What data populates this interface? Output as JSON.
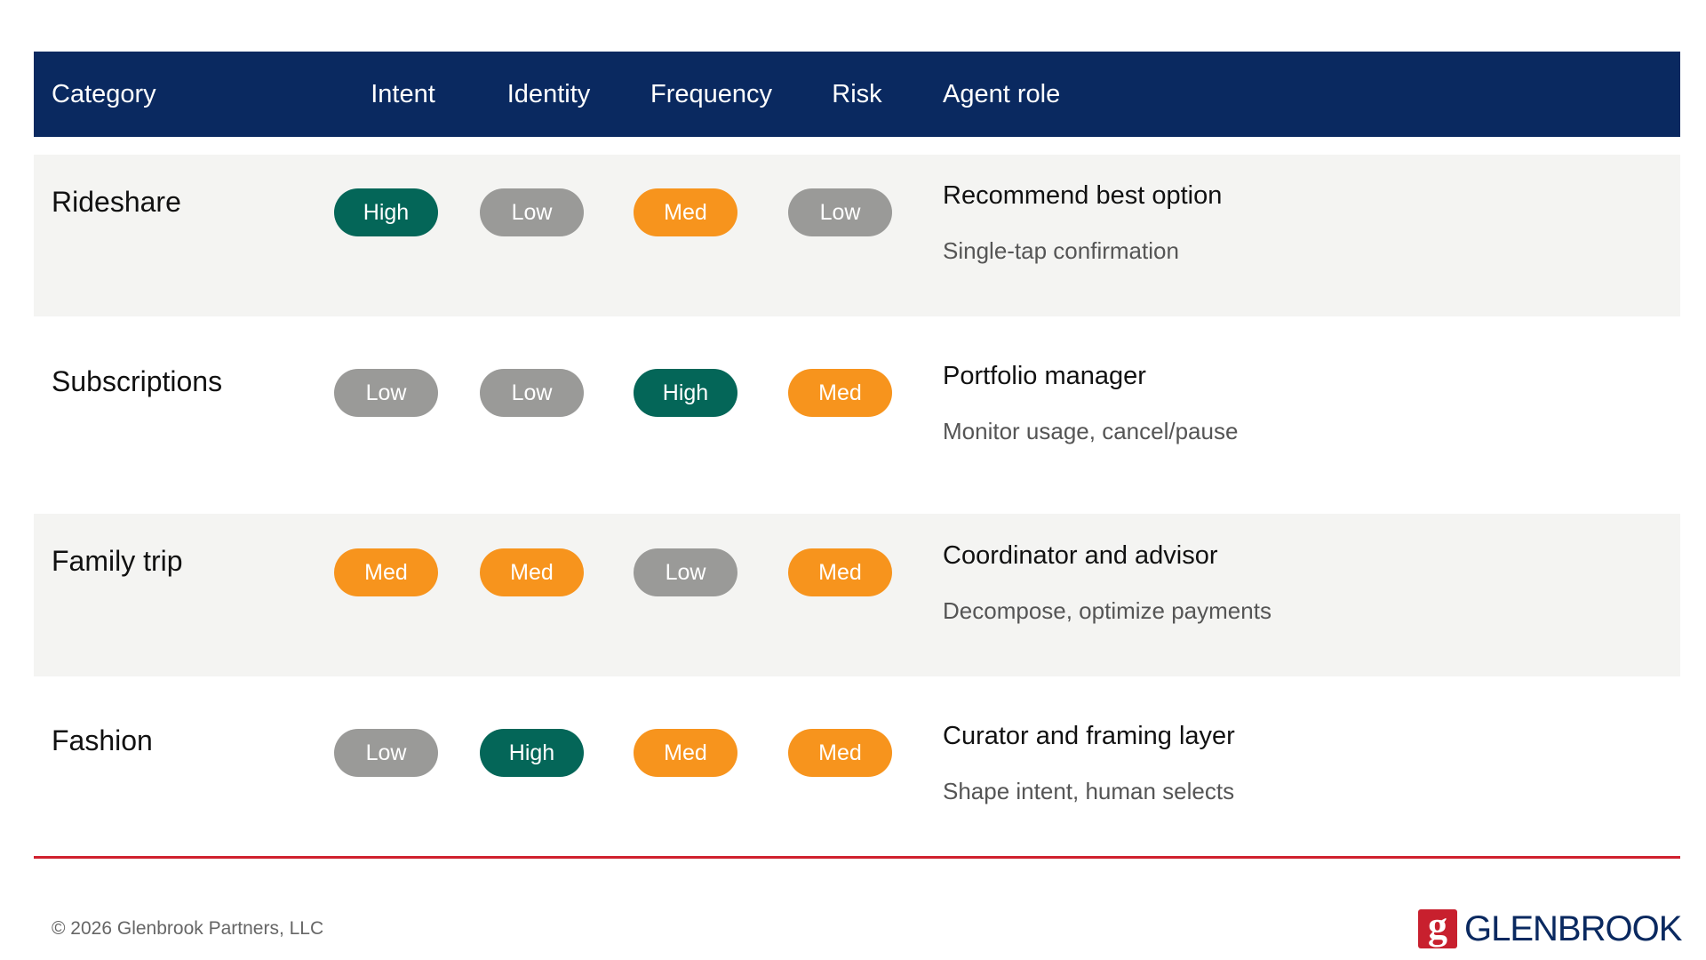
{
  "header": {
    "category": "Category",
    "intent": "Intent",
    "identity": "Identity",
    "frequency": "Frequency",
    "risk": "Risk",
    "agent_role": "Agent role"
  },
  "rows": [
    {
      "category": "Rideshare",
      "intent": {
        "label": "High",
        "level": "high"
      },
      "identity": {
        "label": "Low",
        "level": "low"
      },
      "frequency": {
        "label": "Med",
        "level": "med"
      },
      "risk": {
        "label": "Low",
        "level": "low"
      },
      "role_title": "Recommend best option",
      "role_sub": "Single-tap confirmation"
    },
    {
      "category": "Subscriptions",
      "intent": {
        "label": "Low",
        "level": "low"
      },
      "identity": {
        "label": "Low",
        "level": "low"
      },
      "frequency": {
        "label": "High",
        "level": "high"
      },
      "risk": {
        "label": "Med",
        "level": "med"
      },
      "role_title": "Portfolio manager",
      "role_sub": "Monitor usage, cancel/pause"
    },
    {
      "category": "Family trip",
      "intent": {
        "label": "Med",
        "level": "med"
      },
      "identity": {
        "label": "Med",
        "level": "med"
      },
      "frequency": {
        "label": "Low",
        "level": "low"
      },
      "risk": {
        "label": "Med",
        "level": "med"
      },
      "role_title": "Coordinator and advisor",
      "role_sub": "Decompose, optimize payments"
    },
    {
      "category": "Fashion",
      "intent": {
        "label": "Low",
        "level": "low"
      },
      "identity": {
        "label": "High",
        "level": "high"
      },
      "frequency": {
        "label": "Med",
        "level": "med"
      },
      "risk": {
        "label": "Med",
        "level": "med"
      },
      "role_title": "Curator and framing layer",
      "role_sub": "Shape intent, human selects"
    }
  ],
  "colors": {
    "header_bg": "#0a2960",
    "high": "#046658",
    "low": "#9a9a98",
    "med": "#f7941d",
    "divider": "#d0202e",
    "brand_red": "#c8202e"
  },
  "footer": {
    "copyright": "© 2026 Glenbrook Partners, LLC",
    "logo_mark": "g",
    "logo_text": "GLENBROOK"
  }
}
